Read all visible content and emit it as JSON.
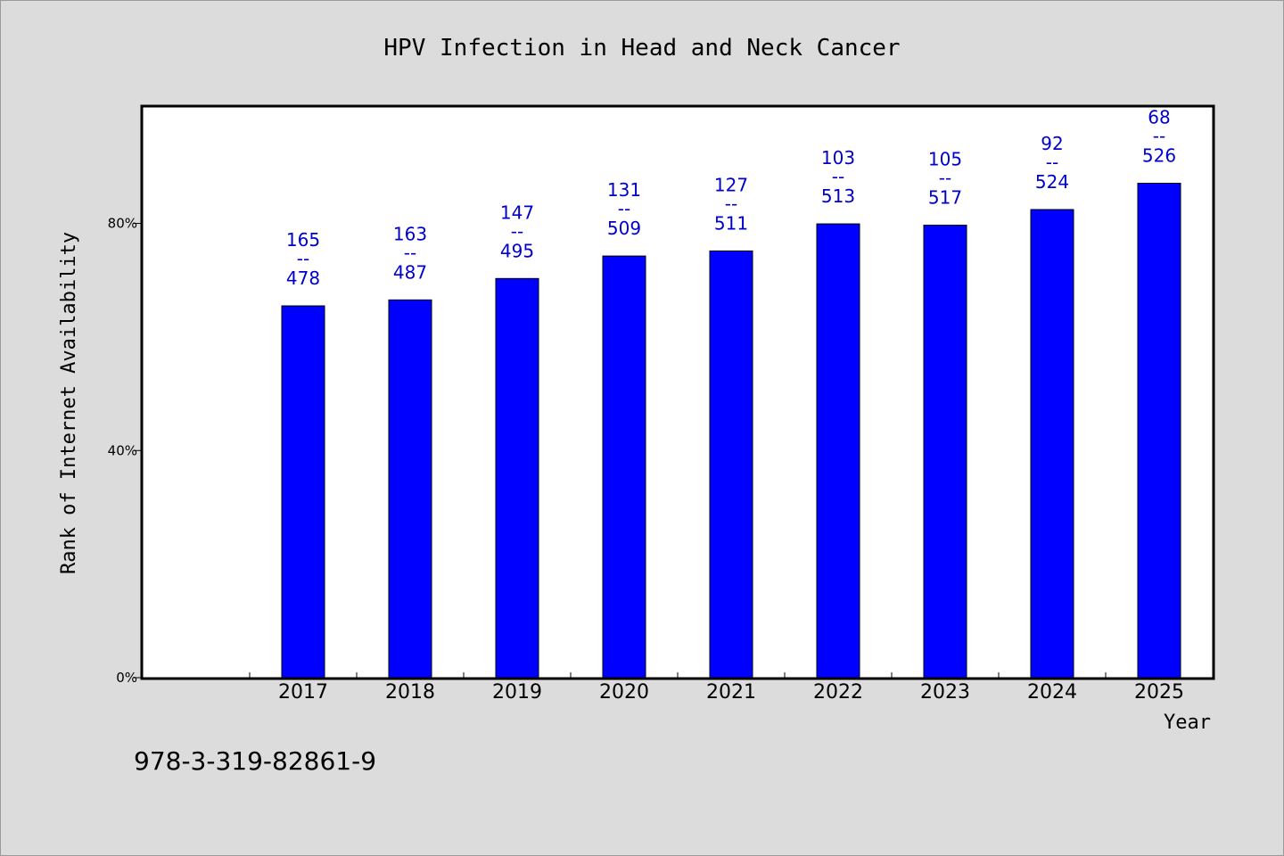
{
  "chart_data": {
    "type": "bar",
    "title": "HPV Infection in Head and Neck Cancer",
    "xlabel": "Year",
    "ylabel": "Rank of Internet Availability",
    "categories": [
      "2017",
      "2018",
      "2019",
      "2020",
      "2021",
      "2022",
      "2023",
      "2024",
      "2025"
    ],
    "values": [
      65.48,
      66.53,
      70.3,
      74.26,
      75.15,
      79.92,
      79.69,
      82.44,
      87.07
    ],
    "data_labels": [
      {
        "top": "165",
        "sep": "--",
        "bottom": "478"
      },
      {
        "top": "163",
        "sep": "--",
        "bottom": "487"
      },
      {
        "top": "147",
        "sep": "--",
        "bottom": "495"
      },
      {
        "top": "131",
        "sep": "--",
        "bottom": "509"
      },
      {
        "top": "127",
        "sep": "--",
        "bottom": "511"
      },
      {
        "top": "103",
        "sep": "--",
        "bottom": "513"
      },
      {
        "top": "105",
        "sep": "--",
        "bottom": "517"
      },
      {
        "top": "92",
        "sep": "--",
        "bottom": "524"
      },
      {
        "top": "68",
        "sep": "--",
        "bottom": "526"
      }
    ],
    "y_ticks": [
      {
        "value": 0,
        "label": "0%"
      },
      {
        "value": 40,
        "label": "40%"
      },
      {
        "value": 80,
        "label": "80%"
      }
    ],
    "ylim": [
      0,
      100.5
    ],
    "x_slots": 10,
    "grid": false,
    "legend": "none",
    "colors": {
      "bar": "#0000ff",
      "bar_edge": "#000000",
      "data_label": "#0000cc",
      "plot_background": "#ffffff",
      "figure_background": "#dcdcdc"
    }
  },
  "footnote": "978-3-319-82861-9"
}
